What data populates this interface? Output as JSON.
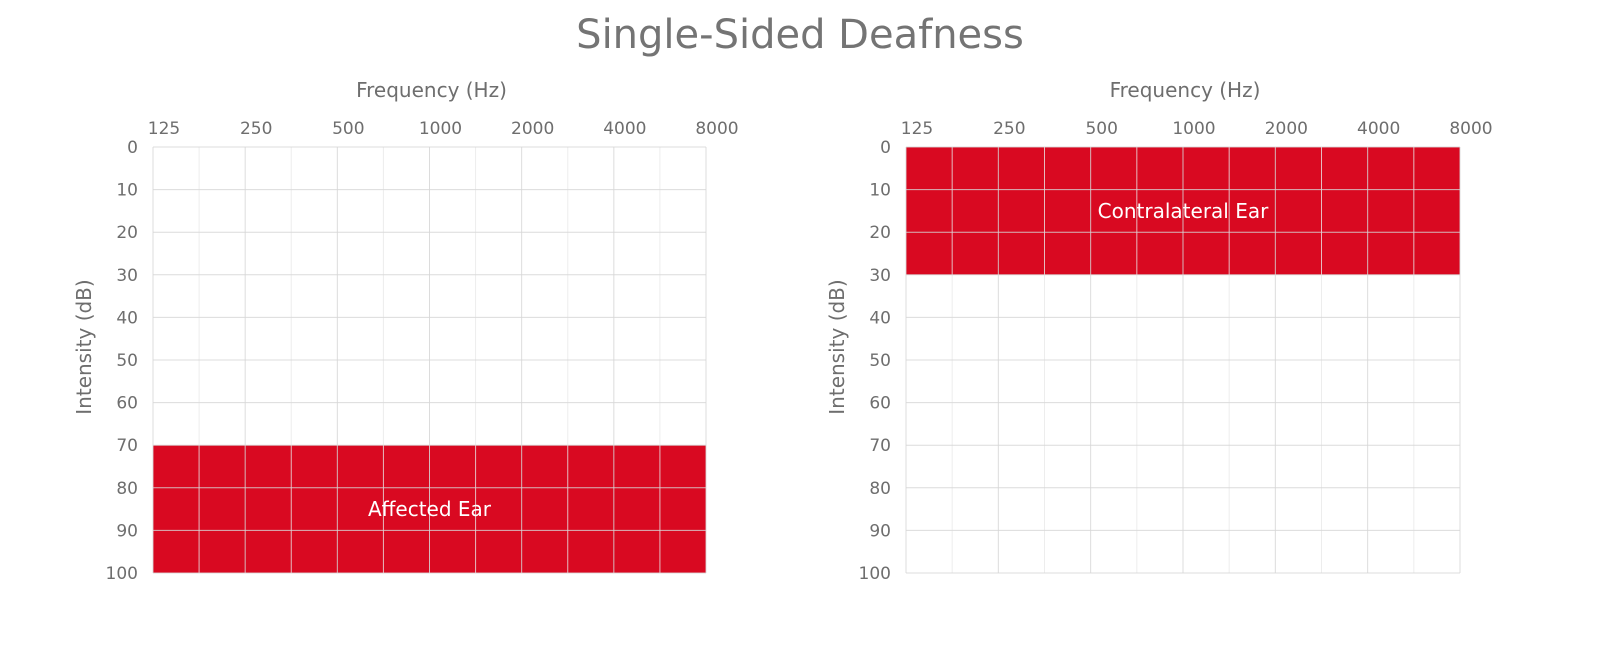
{
  "title": "Single-Sided Deafness",
  "chart_data": [
    {
      "type": "heatmap",
      "xlabel": "Frequency (Hz)",
      "ylabel": "Intensity (dB)",
      "x_ticks": [
        "125",
        "250",
        "500",
        "1000",
        "2000",
        "4000",
        "8000"
      ],
      "y_ticks": [
        "0",
        "10",
        "20",
        "30",
        "40",
        "50",
        "60",
        "70",
        "80",
        "90",
        "100"
      ],
      "ylim": [
        0,
        100
      ],
      "y_inverted": true,
      "grid": true,
      "region": {
        "label": "Affected Ear",
        "y_from": 70,
        "y_to": 100,
        "x_from": "125",
        "x_to": "8000",
        "color": "#d90921"
      }
    },
    {
      "type": "heatmap",
      "xlabel": "Frequency (Hz)",
      "ylabel": "Intensity (dB)",
      "x_ticks": [
        "125",
        "250",
        "500",
        "1000",
        "2000",
        "4000",
        "8000"
      ],
      "y_ticks": [
        "0",
        "10",
        "20",
        "30",
        "40",
        "50",
        "60",
        "70",
        "80",
        "90",
        "100"
      ],
      "ylim": [
        0,
        100
      ],
      "y_inverted": true,
      "grid": true,
      "region": {
        "label": "Contralateral Ear",
        "y_from": 0,
        "y_to": 30,
        "x_from": "125",
        "x_to": "8000",
        "color": "#d90921"
      }
    }
  ],
  "colors": {
    "grid": "#d6d6d6",
    "grid_minor": "#e8e8e8",
    "text": "#6e6e6e",
    "region": "#d90921",
    "region_text": "#ffffff"
  }
}
